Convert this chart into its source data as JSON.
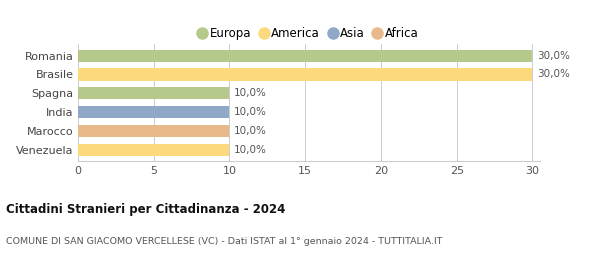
{
  "categories": [
    "Romania",
    "Brasile",
    "Spagna",
    "India",
    "Marocco",
    "Venezuela"
  ],
  "values": [
    30,
    30,
    10,
    10,
    10,
    10
  ],
  "colors": [
    "#b5c98a",
    "#fdd97e",
    "#b5c98a",
    "#8fa8c8",
    "#e8b98a",
    "#fdd97e"
  ],
  "labels": [
    "30,0%",
    "30,0%",
    "10,0%",
    "10,0%",
    "10,0%",
    "10,0%"
  ],
  "legend": [
    {
      "label": "Europa",
      "color": "#b5c98a"
    },
    {
      "label": "America",
      "color": "#fdd97e"
    },
    {
      "label": "Asia",
      "color": "#8fa8c8"
    },
    {
      "label": "Africa",
      "color": "#e8b98a"
    }
  ],
  "xlim": [
    0,
    30
  ],
  "xticks": [
    0,
    5,
    10,
    15,
    20,
    25,
    30
  ],
  "title": "Cittadini Stranieri per Cittadinanza - 2024",
  "subtitle": "COMUNE DI SAN GIACOMO VERCELLESE (VC) - Dati ISTAT al 1° gennaio 2024 - TUTTITALIA.IT",
  "background_color": "#ffffff",
  "grid_color": "#cccccc",
  "bar_label_color": "#555555",
  "ylabel_color": "#555555"
}
